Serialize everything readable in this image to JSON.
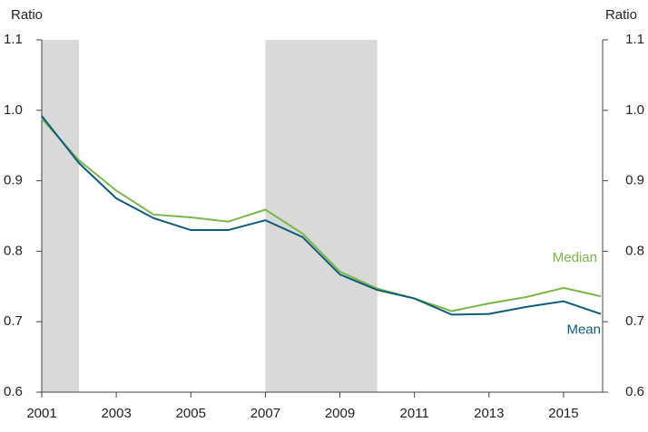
{
  "chart_data": {
    "type": "line",
    "y_label": "Ratio",
    "y2_label": "Ratio",
    "x": [
      2001,
      2002,
      2003,
      2004,
      2005,
      2006,
      2007,
      2008,
      2009,
      2010,
      2011,
      2012,
      2013,
      2014,
      2015,
      2016
    ],
    "series": [
      {
        "name": "Median",
        "color": "#7ab648",
        "values": [
          0.988,
          0.929,
          0.886,
          0.852,
          0.848,
          0.842,
          0.859,
          0.825,
          0.771,
          0.747,
          0.733,
          0.715,
          0.726,
          0.735,
          0.748,
          0.736
        ]
      },
      {
        "name": "Mean",
        "color": "#0d5c7a",
        "values": [
          0.992,
          0.925,
          0.875,
          0.847,
          0.83,
          0.83,
          0.844,
          0.82,
          0.767,
          0.745,
          0.733,
          0.71,
          0.711,
          0.721,
          0.729,
          0.711
        ]
      }
    ],
    "shaded_regions": [
      [
        2001,
        2002
      ],
      [
        2007,
        2010
      ]
    ],
    "shade_color": "#d9d9d9",
    "xlim": [
      2001,
      2016
    ],
    "xticks": [
      2001,
      2003,
      2005,
      2007,
      2009,
      2011,
      2013,
      2015
    ],
    "ylim": [
      0.6,
      1.1
    ],
    "yticks": [
      0.6,
      0.7,
      0.8,
      0.9,
      {
        "value": 1,
        "label": "1.0"
      },
      1.1
    ],
    "y2lim": [
      0.6,
      1.1
    ],
    "y2ticks": [
      0.6,
      0.7,
      0.8,
      0.9,
      {
        "value": 1,
        "label": "1.0"
      },
      1.1
    ]
  }
}
